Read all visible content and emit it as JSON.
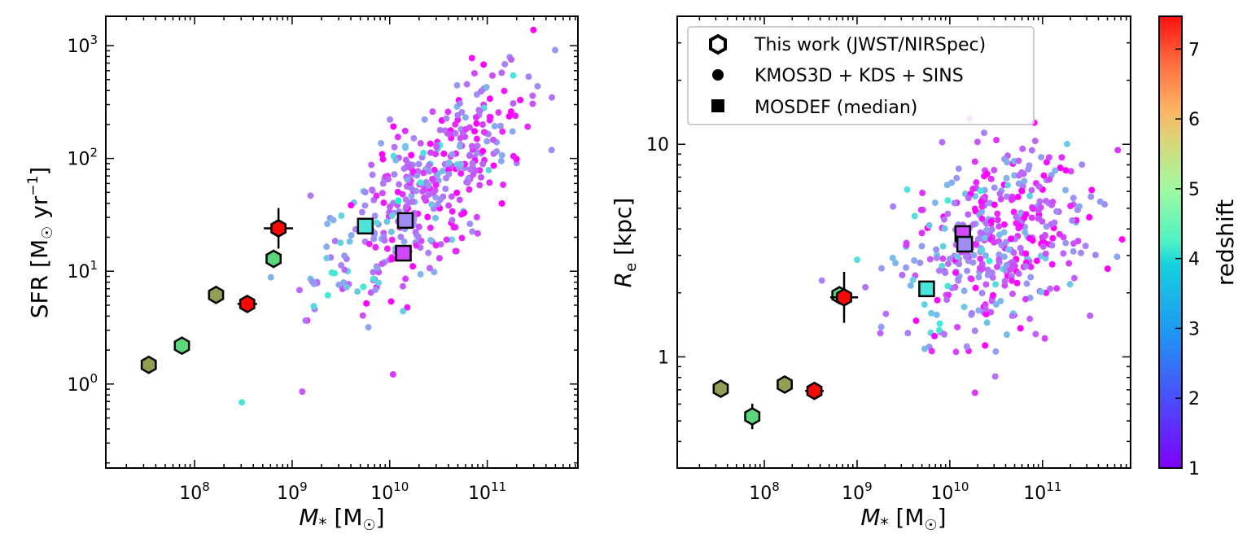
{
  "chart_data": [
    {
      "type": "scatter",
      "panel": "left",
      "xlabel": "M* [M☉]",
      "ylabel": "SFR [M☉ yr⁻¹]",
      "xscale": "log",
      "yscale": "log",
      "xlim": [
        12300000,
        850000000000
      ],
      "ylim": [
        0.18,
        1820
      ],
      "xticks": [
        {
          "value": 100000000.0,
          "base": "10",
          "exp": "8"
        },
        {
          "value": 1000000000.0,
          "base": "10",
          "exp": "9"
        },
        {
          "value": 10000000000.0,
          "base": "10",
          "exp": "10"
        },
        {
          "value": 100000000000.0,
          "base": "10",
          "exp": "11"
        }
      ],
      "yticks": [
        {
          "value": 1,
          "base": "10",
          "exp": "0"
        },
        {
          "value": 10,
          "base": "10",
          "exp": "1"
        },
        {
          "value": 100,
          "base": "10",
          "exp": "2"
        },
        {
          "value": 1000,
          "base": "10",
          "exp": "3"
        }
      ],
      "this_work": [
        {
          "logm": 7.53,
          "logy": 0.17,
          "z": 6.1
        },
        {
          "logm": 7.87,
          "logy": 0.34,
          "z": 5.4
        },
        {
          "logm": 8.22,
          "logy": 0.79,
          "z": 6.1
        },
        {
          "logm": 8.54,
          "logy": 0.71,
          "z": 7.4,
          "xerr": 0.1
        },
        {
          "logm": 8.81,
          "logy": 1.11,
          "z": 5.4
        },
        {
          "logm": 8.86,
          "logy": 1.38,
          "z": 7.4,
          "xerr": 0.15,
          "yerr": 0.18
        }
      ],
      "mosdef": [
        {
          "logm": 9.75,
          "logy": 1.4,
          "z": 3.3
        },
        {
          "logm": 10.16,
          "logy": 1.45,
          "z": 2.2
        },
        {
          "logm": 10.14,
          "logy": 1.16,
          "z": 1.6
        }
      ]
    },
    {
      "type": "scatter",
      "panel": "right",
      "xlabel": "M* [M☉]",
      "ylabel": "Re [kpc]",
      "xscale": "log",
      "yscale": "log",
      "xlim": [
        11500000,
        890000000000
      ],
      "ylim": [
        0.3,
        40
      ],
      "xticks": [
        {
          "value": 100000000.0,
          "base": "10",
          "exp": "8"
        },
        {
          "value": 1000000000.0,
          "base": "10",
          "exp": "9"
        },
        {
          "value": 10000000000.0,
          "base": "10",
          "exp": "10"
        },
        {
          "value": 100000000000.0,
          "base": "10",
          "exp": "11"
        }
      ],
      "yticks": [
        {
          "value": 1,
          "label": "1"
        },
        {
          "value": 10,
          "label": "10"
        }
      ],
      "this_work": [
        {
          "logm": 7.53,
          "logy": -0.15,
          "z": 6.1
        },
        {
          "logm": 7.87,
          "logy": -0.28,
          "z": 5.4,
          "yerr": 0.06
        },
        {
          "logm": 8.22,
          "logy": -0.13,
          "z": 6.1
        },
        {
          "logm": 8.54,
          "logy": -0.16,
          "z": 7.4,
          "xerr": 0.1
        },
        {
          "logm": 8.81,
          "logy": 0.29,
          "z": 5.4
        },
        {
          "logm": 8.86,
          "logy": 0.28,
          "z": 7.4,
          "xerr": 0.15,
          "yerr": 0.12
        }
      ],
      "mosdef": [
        {
          "logm": 9.75,
          "logy": 0.32,
          "z": 3.3
        },
        {
          "logm": 10.14,
          "logy": 0.58,
          "z": 1.6
        },
        {
          "logm": 10.16,
          "logy": 0.53,
          "z": 2.2
        }
      ],
      "legend": {
        "placement": "top-left",
        "entries": [
          {
            "marker": "hexagon",
            "label": "This work (JWST/NIRSpec)"
          },
          {
            "marker": "circle",
            "label": "KMOS3D + KDS + SINS"
          },
          {
            "marker": "square",
            "label": "MOSDEF (median)"
          }
        ]
      }
    }
  ],
  "colorbar": {
    "label": "redshift",
    "range": [
      1,
      7.47
    ],
    "ticks": [
      "1",
      "2",
      "3",
      "4",
      "5",
      "6",
      "7"
    ],
    "colormap": "rainbow"
  },
  "scatter_seed": {
    "left_cloud": {
      "n": 420,
      "logm_center": 10.35,
      "logm_sd": 0.55,
      "slope": 0.72,
      "intercept": 1.72,
      "scatter_sd": 0.35
    },
    "right_cloud": {
      "n": 430,
      "logm_center": 10.5,
      "logm_sd": 0.5,
      "logy_center": 0.55,
      "logy_sd": 0.22
    }
  }
}
